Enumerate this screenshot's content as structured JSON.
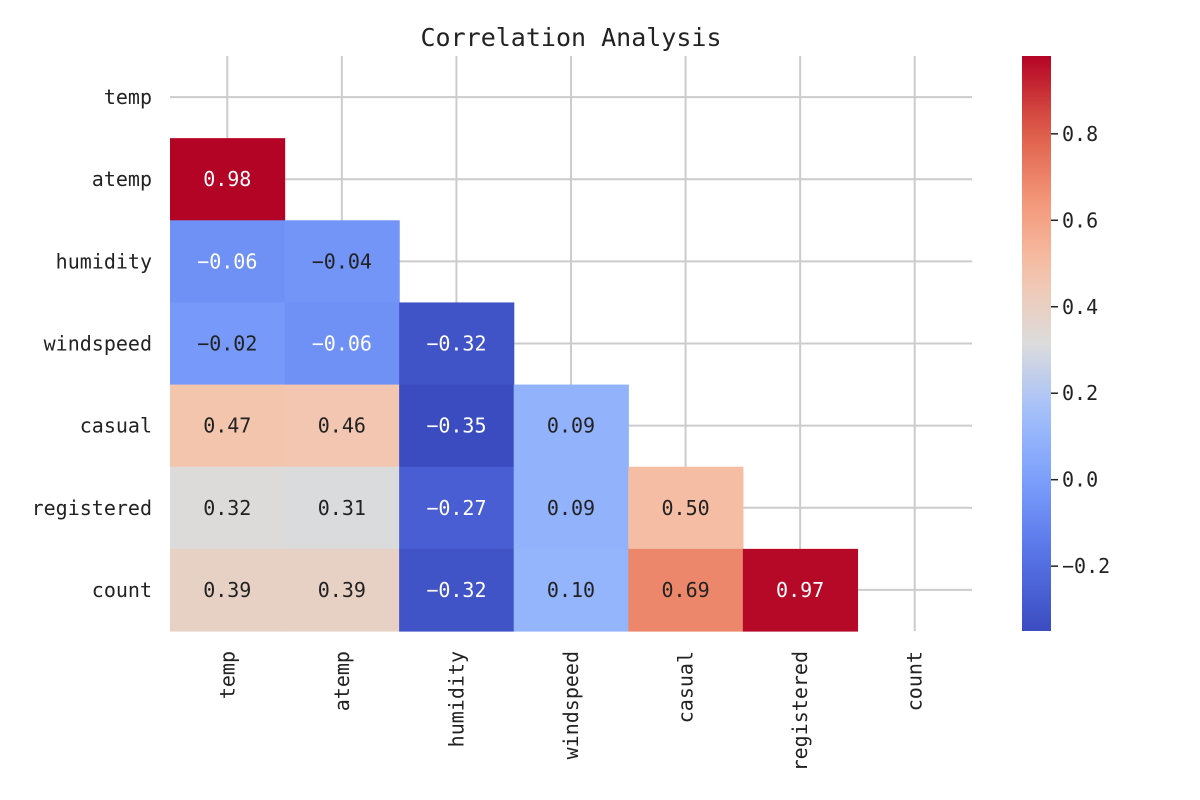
{
  "chart_data": {
    "type": "heatmap",
    "title": "Correlation Analysis",
    "rows": [
      "temp",
      "atemp",
      "humidity",
      "windspeed",
      "casual",
      "registered",
      "count"
    ],
    "columns": [
      "temp",
      "atemp",
      "humidity",
      "windspeed",
      "casual",
      "registered",
      "count"
    ],
    "mask": "upper-triangle-including-diagonal",
    "values": [
      [
        null,
        null,
        null,
        null,
        null,
        null,
        null
      ],
      [
        0.98,
        null,
        null,
        null,
        null,
        null,
        null
      ],
      [
        -0.06,
        -0.04,
        null,
        null,
        null,
        null,
        null
      ],
      [
        -0.02,
        -0.06,
        -0.32,
        null,
        null,
        null,
        null
      ],
      [
        0.47,
        0.46,
        -0.35,
        0.09,
        null,
        null,
        null
      ],
      [
        0.32,
        0.31,
        -0.27,
        0.09,
        0.5,
        null,
        null
      ],
      [
        0.39,
        0.39,
        -0.32,
        0.1,
        0.69,
        0.97,
        null
      ]
    ],
    "value_labels": [
      [],
      [
        "0.98"
      ],
      [
        "-0.06",
        "-0.04"
      ],
      [
        "-0.02",
        "-0.06",
        "-0.32"
      ],
      [
        "0.47",
        "0.46",
        "-0.35",
        "0.09"
      ],
      [
        "0.32",
        "0.31",
        "-0.27",
        "0.09",
        "0.50"
      ],
      [
        "0.39",
        "0.39",
        "-0.32",
        "0.10",
        "0.69",
        "0.97"
      ]
    ],
    "colormap": "coolwarm",
    "color_range": [
      -0.35,
      0.98
    ],
    "colorbar_ticks": [
      -0.2,
      0.0,
      0.2,
      0.4,
      0.6,
      0.8
    ],
    "colorbar_tick_labels": [
      "−0.2",
      "0.0",
      "0.2",
      "0.4",
      "0.6",
      "0.8"
    ],
    "grid": true,
    "colorbar_placement": "right"
  }
}
